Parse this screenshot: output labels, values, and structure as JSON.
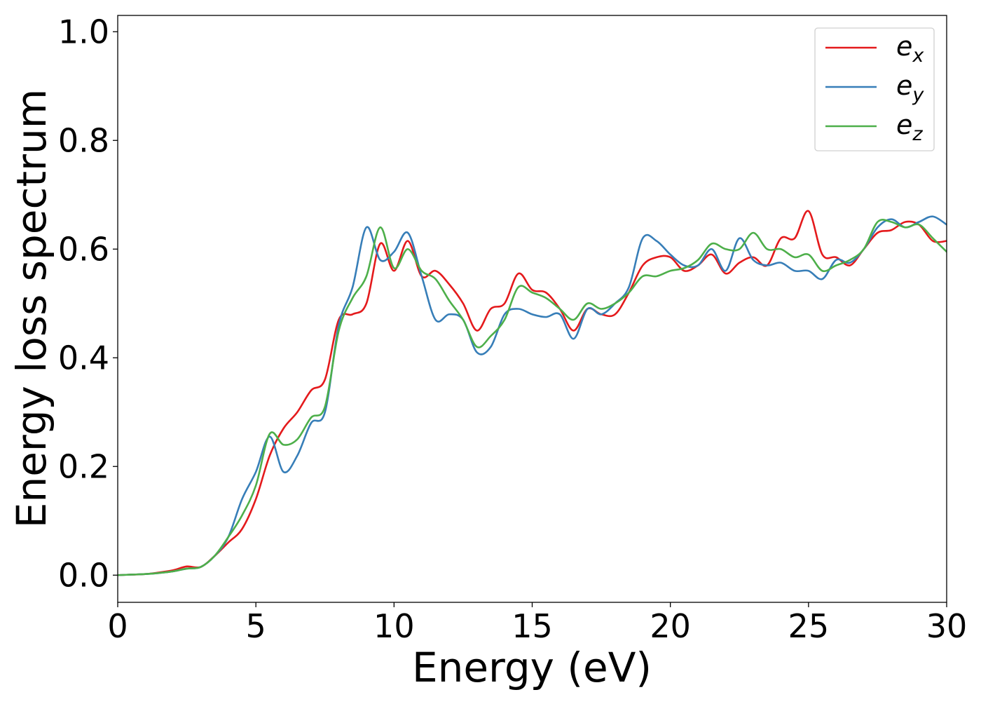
{
  "chart_data": {
    "type": "line",
    "title": "",
    "xlabel": "Energy (eV)",
    "ylabel": "Energy loss spectrum",
    "xlim": [
      0,
      30
    ],
    "ylim": [
      -0.05,
      1.03
    ],
    "xticks": [
      0,
      5,
      10,
      15,
      20,
      25,
      30
    ],
    "yticks": [
      0.0,
      0.2,
      0.4,
      0.6,
      0.8,
      1.0
    ],
    "xtick_labels": [
      "0",
      "5",
      "10",
      "15",
      "20",
      "25",
      "30"
    ],
    "ytick_labels": [
      "0.0",
      "0.2",
      "0.4",
      "0.6",
      "0.8",
      "1.0"
    ],
    "grid": false,
    "legend": "top-right",
    "x": [
      0,
      0.5,
      1,
      1.5,
      2,
      2.5,
      3,
      3.5,
      4,
      4.5,
      5,
      5.5,
      6,
      6.5,
      7,
      7.5,
      8,
      8.5,
      9,
      9.5,
      10,
      10.5,
      11,
      11.5,
      12,
      12.5,
      13,
      13.5,
      14,
      14.5,
      15,
      15.5,
      16,
      16.5,
      17,
      17.5,
      18,
      18.5,
      19,
      19.5,
      20,
      20.5,
      21,
      21.5,
      22,
      22.5,
      23,
      23.5,
      24,
      24.5,
      25,
      25.5,
      26,
      26.5,
      27,
      27.5,
      28,
      28.5,
      29,
      29.5,
      30
    ],
    "series": [
      {
        "name": "e_x",
        "label_base": "e",
        "label_sub": "x",
        "color": "#e41a1c",
        "values": [
          0,
          0.001,
          0.002,
          0.005,
          0.009,
          0.016,
          0.015,
          0.035,
          0.06,
          0.085,
          0.14,
          0.22,
          0.27,
          0.3,
          0.34,
          0.36,
          0.47,
          0.48,
          0.5,
          0.61,
          0.56,
          0.615,
          0.55,
          0.56,
          0.535,
          0.5,
          0.45,
          0.49,
          0.5,
          0.555,
          0.525,
          0.52,
          0.49,
          0.45,
          0.49,
          0.48,
          0.48,
          0.52,
          0.57,
          0.585,
          0.585,
          0.56,
          0.57,
          0.59,
          0.555,
          0.575,
          0.585,
          0.57,
          0.62,
          0.62,
          0.67,
          0.59,
          0.585,
          0.57,
          0.6,
          0.63,
          0.635,
          0.65,
          0.645,
          0.615,
          0.615
        ]
      },
      {
        "name": "e_y",
        "label_base": "e",
        "label_sub": "y",
        "color": "#377eb8",
        "values": [
          0,
          0.001,
          0.002,
          0.004,
          0.007,
          0.012,
          0.015,
          0.035,
          0.07,
          0.14,
          0.19,
          0.255,
          0.19,
          0.22,
          0.28,
          0.3,
          0.46,
          0.53,
          0.64,
          0.58,
          0.595,
          0.63,
          0.55,
          0.47,
          0.48,
          0.47,
          0.41,
          0.42,
          0.48,
          0.49,
          0.48,
          0.475,
          0.48,
          0.435,
          0.49,
          0.48,
          0.5,
          0.53,
          0.62,
          0.615,
          0.59,
          0.57,
          0.57,
          0.6,
          0.56,
          0.62,
          0.58,
          0.57,
          0.575,
          0.56,
          0.56,
          0.545,
          0.58,
          0.575,
          0.6,
          0.64,
          0.655,
          0.64,
          0.65,
          0.66,
          0.645
        ]
      },
      {
        "name": "e_z",
        "label_base": "e",
        "label_sub": "z",
        "color": "#4daf4a",
        "values": [
          0,
          0.001,
          0.002,
          0.004,
          0.007,
          0.012,
          0.015,
          0.035,
          0.07,
          0.11,
          0.165,
          0.26,
          0.24,
          0.25,
          0.29,
          0.31,
          0.45,
          0.51,
          0.55,
          0.64,
          0.565,
          0.6,
          0.56,
          0.545,
          0.505,
          0.47,
          0.42,
          0.44,
          0.47,
          0.53,
          0.52,
          0.51,
          0.49,
          0.47,
          0.5,
          0.49,
          0.5,
          0.52,
          0.55,
          0.55,
          0.56,
          0.565,
          0.58,
          0.61,
          0.6,
          0.6,
          0.63,
          0.6,
          0.6,
          0.585,
          0.59,
          0.56,
          0.57,
          0.58,
          0.6,
          0.65,
          0.65,
          0.64,
          0.645,
          0.62,
          0.595
        ]
      }
    ]
  }
}
